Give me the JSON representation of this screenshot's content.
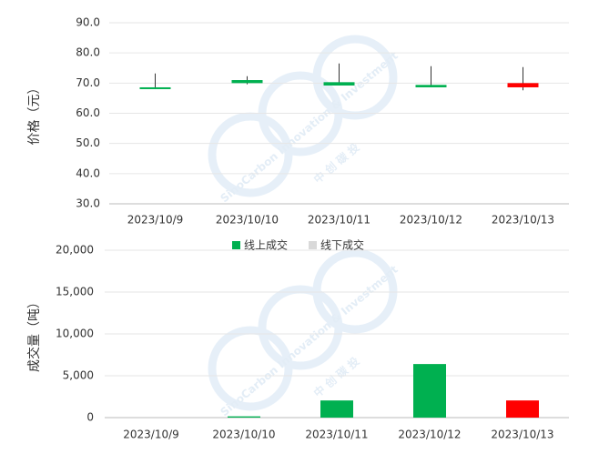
{
  "chart_data": [
    {
      "type": "candlestick",
      "y_label": "价格（元）",
      "categories": [
        "2023/10/9",
        "2023/10/10",
        "2023/10/11",
        "2023/10/12",
        "2023/10/13"
      ],
      "open": [
        68.0,
        70.0,
        69.2,
        68.6,
        68.6
      ],
      "close": [
        68.6,
        71.0,
        70.3,
        69.4,
        70.0
      ],
      "high": [
        73.2,
        72.3,
        76.5,
        75.6,
        75.3
      ],
      "low": [
        68.0,
        69.6,
        69.2,
        68.6,
        67.6
      ],
      "colors": [
        "#00b050",
        "#00b050",
        "#00b050",
        "#00b050",
        "#ff0000"
      ],
      "ylim": [
        30,
        90
      ],
      "yticks": [
        {
          "value": 30,
          "label": "30.0"
        },
        {
          "value": 40,
          "label": "40.0"
        },
        {
          "value": 50,
          "label": "50.0"
        },
        {
          "value": 60,
          "label": "60.0"
        },
        {
          "value": 70,
          "label": "70.0"
        },
        {
          "value": 80,
          "label": "80.0"
        },
        {
          "value": 90,
          "label": "90.0"
        }
      ],
      "grid": true
    },
    {
      "type": "bar",
      "y_label": "成交量（吨）",
      "categories": [
        "2023/10/9",
        "2023/10/10",
        "2023/10/11",
        "2023/10/12",
        "2023/10/13"
      ],
      "series": [
        {
          "name": "线上成交",
          "color": "#00b050",
          "colors": [
            "#00b050",
            "#00b050",
            "#00b050",
            "#00b050",
            "#ff0000"
          ],
          "values": [
            0,
            150,
            2050,
            6400,
            2050
          ]
        },
        {
          "name": "线下成交",
          "color": "#d9d9d9",
          "values": [
            0,
            0,
            0,
            0,
            0
          ]
        }
      ],
      "ylim": [
        0,
        20000
      ],
      "yticks": [
        0,
        {
          "value": 5000,
          "label": "5,000"
        },
        {
          "value": 10000,
          "label": "10,000"
        },
        {
          "value": 15000,
          "label": "15,000"
        },
        {
          "value": 20000,
          "label": "20,000"
        }
      ],
      "grid": true
    }
  ],
  "watermark": {
    "brand": "SinoCarbon Innovation & Investment",
    "cn": "中 创 碳 投"
  }
}
